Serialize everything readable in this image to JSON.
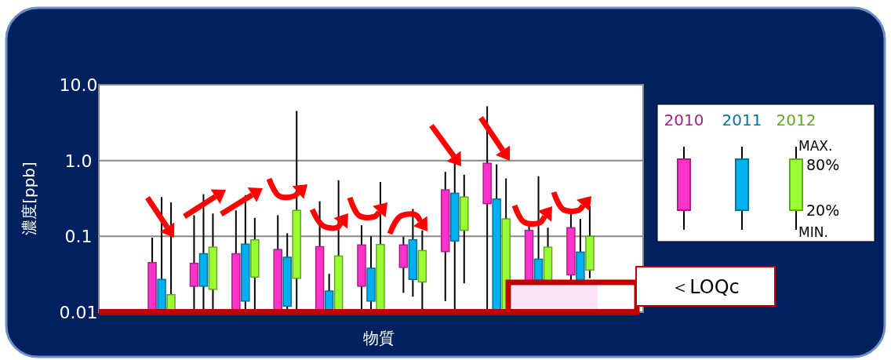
{
  "chart_data": {
    "type": "box",
    "xlabel": "物質",
    "ylabel": "濃度[ppb]",
    "log": true,
    "ylim": [
      0.01,
      10
    ],
    "yticks": [
      0.01,
      0.1,
      {
        "value": 1,
        "label": "1.0"
      },
      {
        "value": 10,
        "label": "10.0"
      }
    ],
    "grid": "y",
    "legend": "right",
    "categories": [
      null,
      null,
      null,
      null,
      null,
      null,
      null,
      null,
      null,
      null,
      null,
      null,
      null
    ],
    "ref_lines": [
      {
        "axis": "y",
        "value": 0.01,
        "color": "#c00000"
      }
    ],
    "series": [
      {
        "name": "2010",
        "color": "#ff33cc",
        "boxes": [
          null,
          {
            "low": 0.01,
            "q1": 0.01,
            "q3": 0.045,
            "high": 0.096
          },
          {
            "low": 0.01,
            "q1": 0.022,
            "q3": 0.044,
            "high": 0.19
          },
          {
            "low": 0.01,
            "q1": 0.01,
            "q3": 0.059,
            "high": 0.22
          },
          {
            "low": 0.01,
            "q1": 0.01,
            "q3": 0.067,
            "high": 0.19
          },
          {
            "low": 0.01,
            "q1": 0.01,
            "q3": 0.073,
            "high": 0.29
          },
          {
            "low": 0.01,
            "q1": 0.022,
            "q3": 0.077,
            "high": 0.14
          },
          {
            "low": 0.018,
            "q1": 0.039,
            "q3": 0.077,
            "high": 0.099
          },
          {
            "low": 0.014,
            "q1": 0.063,
            "q3": 0.41,
            "high": 0.71
          },
          {
            "low": 0.01,
            "q1": 0.27,
            "q3": 0.92,
            "high": 5.2
          },
          {
            "low": 0.01,
            "q1": 0.01,
            "q3": 0.12,
            "high": 0.15
          },
          {
            "low": 0.01,
            "q1": 0.031,
            "q3": 0.13,
            "high": 0.22
          },
          null
        ]
      },
      {
        "name": "2011",
        "color": "#00b0f0",
        "boxes": [
          null,
          {
            "low": 0.01,
            "q1": 0.01,
            "q3": 0.027,
            "high": 0.33
          },
          {
            "low": 0.01,
            "q1": 0.022,
            "q3": 0.059,
            "high": 0.36
          },
          {
            "low": 0.01,
            "q1": 0.014,
            "q3": 0.079,
            "high": 0.35
          },
          {
            "low": 0.01,
            "q1": 0.012,
            "q3": 0.053,
            "high": 0.11
          },
          {
            "low": 0.01,
            "q1": 0.01,
            "q3": 0.019,
            "high": 0.032
          },
          {
            "low": 0.01,
            "q1": 0.014,
            "q3": 0.038,
            "high": 0.1
          },
          {
            "low": 0.016,
            "q1": 0.027,
            "q3": 0.09,
            "high": 0.23
          },
          {
            "low": 0.01,
            "q1": 0.087,
            "q3": 0.37,
            "high": 1.2
          },
          {
            "low": 0.01,
            "q1": 0.01,
            "q3": 0.31,
            "high": 0.89
          },
          {
            "low": 0.01,
            "q1": 0.01,
            "q3": 0.05,
            "high": 0.62
          },
          {
            "low": 0.01,
            "q1": 0.01,
            "q3": 0.062,
            "high": 0.17
          },
          null
        ]
      },
      {
        "name": "2012",
        "color": "#99ff33",
        "boxes": [
          null,
          {
            "low": 0.01,
            "q1": 0.01,
            "q3": 0.017,
            "high": 0.28
          },
          {
            "low": 0.01,
            "q1": 0.02,
            "q3": 0.072,
            "high": 0.2
          },
          {
            "low": 0.01,
            "q1": 0.029,
            "q3": 0.09,
            "high": 0.175
          },
          {
            "low": 0.01,
            "q1": 0.028,
            "q3": 0.22,
            "high": 4.5
          },
          {
            "low": 0.01,
            "q1": 0.01,
            "q3": 0.055,
            "high": 0.55
          },
          {
            "low": 0.01,
            "q1": 0.01,
            "q3": 0.078,
            "high": 0.52
          },
          {
            "low": 0.01,
            "q1": 0.025,
            "q3": 0.065,
            "high": 0.12
          },
          {
            "low": 0.024,
            "q1": 0.12,
            "q3": 0.33,
            "high": 0.65
          },
          {
            "low": 0.01,
            "q1": 0.01,
            "q3": 0.17,
            "high": 0.58
          },
          {
            "low": 0.01,
            "q1": 0.01,
            "q3": 0.072,
            "high": 0.13
          },
          {
            "low": 0.028,
            "q1": 0.036,
            "q3": 0.1,
            "high": 0.25
          },
          null
        ]
      }
    ],
    "annotations": [
      "MAX.",
      "80%",
      "20%",
      "MIN.",
      "＜LOQc"
    ]
  }
}
